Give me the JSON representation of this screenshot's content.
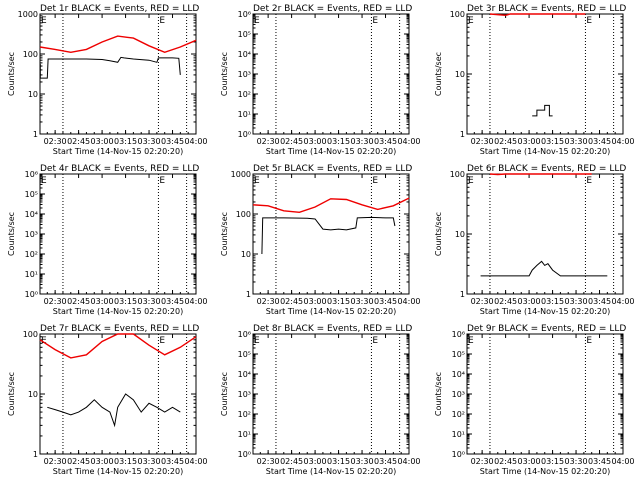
{
  "figure": {
    "panel_titles": [
      "Det 1r BLACK = Events, RED = LLD",
      "Det 2r BLACK = Events, RED = LLD",
      "Det 3r BLACK = Events, RED = LLD",
      "Det 4r BLACK = Events, RED = LLD",
      "Det 5r BLACK = Events, RED = LLD",
      "Det 6r BLACK = Events, RED = LLD",
      "Det 7r BLACK = Events, RED = LLD",
      "Det 8r BLACK = Events, RED = LLD",
      "Det 9r BLACK = Events, RED = LLD"
    ],
    "ylabel": "Counts/sec",
    "xlabel": "Start Time (14-Nov-15 02:20:20)",
    "x_ticks": [
      "02:30",
      "02:45",
      "03:00",
      "03:15",
      "03:30",
      "03:45",
      "04:00"
    ],
    "marker_glyph": "E",
    "series_colors": {
      "events": "#000000",
      "lld": "#ee0000"
    }
  },
  "chart_data": [
    {
      "type": "line",
      "title": "Det 1r BLACK = Events, RED = LLD",
      "yscale": "log",
      "ylim": [
        1,
        1000
      ],
      "y_ticks": [
        "1",
        "10",
        "100",
        "1000"
      ],
      "xlabel": "Start Time (14-Nov-15 02:20:20)",
      "ylabel": "Counts/sec",
      "x_ticks": [
        "02:30",
        "02:45",
        "03:00",
        "03:15",
        "03:30",
        "03:45",
        "04:00"
      ],
      "xlim": [
        "02:20:20",
        "04:00"
      ],
      "vlines": [
        "02:35",
        "03:36",
        "03:54"
      ],
      "events": {
        "x": [
          "02:20:20",
          "02:20:30",
          "02:20:30",
          "02:25",
          "02:25:30",
          "02:26",
          "02:40",
          "02:50",
          "03:00",
          "03:05",
          "03:10",
          "03:12",
          "03:14",
          "03:20",
          "03:30",
          "03:35",
          "03:36",
          "03:45",
          "03:49",
          "03:50"
        ],
        "y": [
          55,
          55,
          25,
          25,
          75,
          75,
          75,
          75,
          73,
          68,
          62,
          82,
          80,
          75,
          70,
          62,
          80,
          80,
          78,
          30
        ]
      },
      "lld": {
        "x": [
          "02:20:20",
          "02:30",
          "02:40",
          "02:50",
          "03:00",
          "03:10",
          "03:20",
          "03:30",
          "03:40",
          "03:50",
          "04:00"
        ],
        "y": [
          150,
          130,
          110,
          130,
          200,
          280,
          250,
          160,
          110,
          150,
          220
        ]
      }
    },
    {
      "type": "line",
      "title": "Det 2r BLACK = Events, RED = LLD",
      "yscale": "log",
      "ylim": [
        1,
        1000000
      ],
      "y_ticks": [
        "10⁰",
        "10¹",
        "10²",
        "10³",
        "10⁴",
        "10⁵",
        "10⁶"
      ],
      "xlabel": "Start Time (14-Nov-15 02:20:20)",
      "ylabel": "Counts/sec",
      "x_ticks": [
        "02:30",
        "02:45",
        "03:00",
        "03:15",
        "03:30",
        "03:45",
        "04:00"
      ],
      "xlim": [
        "02:20:20",
        "04:00"
      ],
      "vlines": [
        "02:35",
        "03:36",
        "03:54"
      ],
      "events": {
        "x": [],
        "y": []
      },
      "lld": {
        "x": [],
        "y": []
      }
    },
    {
      "type": "line",
      "title": "Det 3r BLACK = Events, RED = LLD",
      "yscale": "log",
      "ylim": [
        1,
        100
      ],
      "y_ticks": [
        "1",
        "10",
        "100"
      ],
      "xlabel": "Start Time (14-Nov-15 02:20:20)",
      "ylabel": "Counts/sec",
      "x_ticks": [
        "02:30",
        "02:45",
        "03:00",
        "03:15",
        "03:30",
        "03:45",
        "04:00"
      ],
      "xlim": [
        "02:20:20",
        "04:00"
      ],
      "vlines": [
        "02:35",
        "03:36",
        "03:54"
      ],
      "events": {
        "x": [
          "03:02",
          "03:05",
          "03:05",
          "03:10",
          "03:10",
          "03:13",
          "03:13",
          "03:15"
        ],
        "y": [
          2,
          2,
          2.5,
          2.5,
          3,
          3,
          2,
          2
        ]
      },
      "lld": {
        "x": [
          "02:35",
          "02:45",
          "02:48",
          "03:30",
          "03:36"
        ],
        "y": [
          100,
          95,
          100,
          100,
          100
        ]
      }
    },
    {
      "type": "line",
      "title": "Det 4r BLACK = Events, RED = LLD",
      "yscale": "log",
      "ylim": [
        1,
        1000000
      ],
      "y_ticks": [
        "10⁰",
        "10¹",
        "10²",
        "10³",
        "10⁴",
        "10⁵",
        "10⁶"
      ],
      "xlabel": "Start Time (14-Nov-15 02:20:20)",
      "ylabel": "Counts/sec",
      "x_ticks": [
        "02:30",
        "02:45",
        "03:00",
        "03:15",
        "03:30",
        "03:45",
        "04:00"
      ],
      "xlim": [
        "02:20:20",
        "04:00"
      ],
      "vlines": [
        "02:35",
        "03:36",
        "03:54"
      ],
      "events": {
        "x": [],
        "y": []
      },
      "lld": {
        "x": [],
        "y": []
      }
    },
    {
      "type": "line",
      "title": "Det 5r BLACK = Events, RED = LLD",
      "yscale": "log",
      "ylim": [
        1,
        1000
      ],
      "y_ticks": [
        "1",
        "10",
        "100",
        "1000"
      ],
      "xlabel": "Start Time (14-Nov-15 02:20:20)",
      "ylabel": "Counts/sec",
      "x_ticks": [
        "02:30",
        "02:45",
        "03:00",
        "03:15",
        "03:30",
        "03:45",
        "04:00"
      ],
      "xlim": [
        "02:20:20",
        "04:00"
      ],
      "vlines": [
        "02:35",
        "03:36",
        "03:54"
      ],
      "events": {
        "x": [
          "02:26",
          "02:26:30",
          "02:27",
          "02:40",
          "02:55",
          "03:00",
          "03:05",
          "03:10",
          "03:15",
          "03:20",
          "03:26",
          "03:27",
          "03:36",
          "03:45",
          "03:50",
          "03:51"
        ],
        "y": [
          10,
          80,
          80,
          80,
          78,
          75,
          42,
          40,
          42,
          40,
          45,
          80,
          82,
          80,
          80,
          50
        ]
      },
      "lld": {
        "x": [
          "02:20:20",
          "02:30",
          "02:40",
          "02:50",
          "03:00",
          "03:10",
          "03:20",
          "03:30",
          "03:40",
          "03:50",
          "04:00"
        ],
        "y": [
          170,
          160,
          120,
          110,
          150,
          240,
          230,
          170,
          130,
          160,
          250
        ]
      }
    },
    {
      "type": "line",
      "title": "Det 6r BLACK = Events, RED = LLD",
      "yscale": "log",
      "ylim": [
        1,
        100
      ],
      "y_ticks": [
        "1",
        "10",
        "100"
      ],
      "xlabel": "Start Time (14-Nov-15 02:20:20)",
      "ylabel": "Counts/sec",
      "x_ticks": [
        "02:30",
        "02:45",
        "03:00",
        "03:15",
        "03:30",
        "03:45",
        "04:00"
      ],
      "xlim": [
        "02:20:20",
        "04:00"
      ],
      "vlines": [
        "02:35",
        "03:36",
        "03:54"
      ],
      "events": {
        "x": [
          "02:29",
          "02:40",
          "02:45",
          "02:55",
          "03:00",
          "03:02",
          "03:05",
          "03:08",
          "03:10",
          "03:12",
          "03:15",
          "03:20",
          "03:30",
          "03:36",
          "03:45",
          "03:50"
        ],
        "y": [
          2,
          2,
          2,
          2,
          2,
          2.5,
          3,
          3.5,
          3,
          3.2,
          2.5,
          2,
          2,
          2,
          2,
          2
        ]
      },
      "lld": {
        "x": [
          "02:35",
          "02:40",
          "02:45",
          "03:35",
          "03:40"
        ],
        "y": [
          100,
          98,
          100,
          100,
          100
        ]
      }
    },
    {
      "type": "line",
      "title": "Det 7r BLACK = Events, RED = LLD",
      "yscale": "log",
      "ylim": [
        1,
        100
      ],
      "y_ticks": [
        "1",
        "10",
        "100"
      ],
      "xlabel": "Start Time (14-Nov-15 02:20:20)",
      "ylabel": "Counts/sec",
      "x_ticks": [
        "02:30",
        "02:45",
        "03:00",
        "03:15",
        "03:30",
        "03:45",
        "04:00"
      ],
      "xlim": [
        "02:20:20",
        "04:00"
      ],
      "vlines": [
        "02:35",
        "03:36",
        "03:54"
      ],
      "events": {
        "x": [
          "02:25",
          "02:30",
          "02:35",
          "02:40",
          "02:45",
          "02:50",
          "02:55",
          "03:00",
          "03:05",
          "03:08",
          "03:10",
          "03:15",
          "03:20",
          "03:25",
          "03:30",
          "03:35",
          "03:40",
          "03:45",
          "03:50"
        ],
        "y": [
          6,
          5.5,
          5,
          4.5,
          5,
          6,
          8,
          6,
          5,
          3,
          6,
          10,
          8,
          5,
          7,
          6,
          5,
          6,
          5
        ]
      },
      "lld": {
        "x": [
          "02:20:20",
          "02:30",
          "02:40",
          "02:50",
          "03:00",
          "03:10",
          "03:20",
          "03:30",
          "03:40",
          "03:50",
          "04:00"
        ],
        "y": [
          80,
          55,
          40,
          45,
          75,
          100,
          100,
          65,
          45,
          60,
          90
        ]
      }
    },
    {
      "type": "line",
      "title": "Det 8r BLACK = Events, RED = LLD",
      "yscale": "log",
      "ylim": [
        1,
        1000000
      ],
      "y_ticks": [
        "10⁰",
        "10¹",
        "10²",
        "10³",
        "10⁴",
        "10⁵",
        "10⁶"
      ],
      "xlabel": "Start Time (14-Nov-15 02:20:20)",
      "ylabel": "Counts/sec",
      "x_ticks": [
        "02:30",
        "02:45",
        "03:00",
        "03:15",
        "03:30",
        "03:45",
        "04:00"
      ],
      "xlim": [
        "02:20:20",
        "04:00"
      ],
      "vlines": [
        "02:35",
        "03:36",
        "03:54"
      ],
      "events": {
        "x": [],
        "y": []
      },
      "lld": {
        "x": [],
        "y": []
      }
    },
    {
      "type": "line",
      "title": "Det 9r BLACK = Events, RED = LLD",
      "yscale": "log",
      "ylim": [
        1,
        1000000
      ],
      "y_ticks": [
        "10⁰",
        "10¹",
        "10²",
        "10³",
        "10⁴",
        "10⁵",
        "10⁶"
      ],
      "xlabel": "Start Time (14-Nov-15 02:20:20)",
      "ylabel": "Counts/sec",
      "x_ticks": [
        "02:30",
        "02:45",
        "03:00",
        "03:15",
        "03:30",
        "03:45",
        "04:00"
      ],
      "xlim": [
        "02:20:20",
        "04:00"
      ],
      "vlines": [
        "02:35",
        "03:36",
        "03:54"
      ],
      "events": {
        "x": [],
        "y": []
      },
      "lld": {
        "x": [],
        "y": []
      }
    }
  ]
}
